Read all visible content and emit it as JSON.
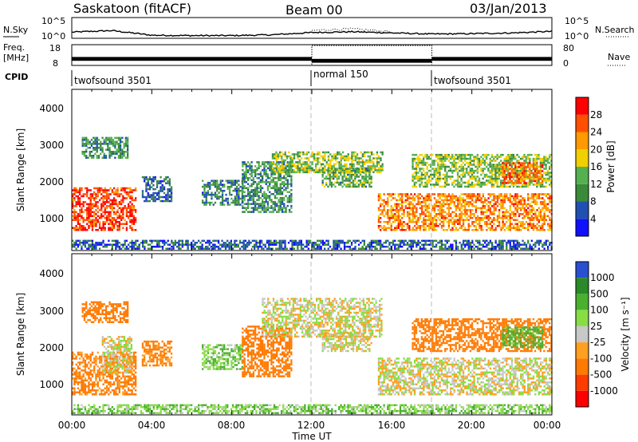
{
  "header": {
    "station": "Saskatoon (fitACF)",
    "beam": "Beam 00",
    "date": "03/Jan/2013"
  },
  "noise_panel": {
    "left_label": "N.Sky",
    "right_label": "N.Search",
    "top_tick": "10^5",
    "bottom_tick": "10^0"
  },
  "freq_panel": {
    "left_label_top": "Freq.",
    "left_label_unit": "[MHz]",
    "left_ticks": [
      "18",
      "8"
    ],
    "right_ticks": [
      "80",
      "0"
    ],
    "right_label": "Nave"
  },
  "cpid_panel": {
    "label": "CPID",
    "segments": [
      {
        "name": "twofsound 3501",
        "start_h": 0,
        "end_h": 12
      },
      {
        "name": "normal 150",
        "start_h": 12,
        "end_h": 18
      },
      {
        "name": "twofsound 3501",
        "start_h": 18,
        "end_h": 24
      }
    ]
  },
  "x_axis": {
    "label": "Time UT",
    "ticks": [
      "00:00",
      "04:00",
      "08:00",
      "12:00",
      "16:00",
      "20:00",
      "00:00"
    ]
  },
  "y_axis": {
    "label": "Slant Range [km]",
    "ticks": [
      "1000",
      "2000",
      "3000",
      "4000"
    ]
  },
  "power_scale": {
    "label": "Power [dB]",
    "ticks": [
      "4",
      "8",
      "12",
      "16",
      "20",
      "24",
      "28"
    ],
    "colors": [
      "#1010ff",
      "#2050b0",
      "#3a8a3a",
      "#55b050",
      "#f0d000",
      "#ff9a00",
      "#ff5000",
      "#ff0000"
    ]
  },
  "velocity_scale": {
    "label": "Velocity [m s⁻¹]",
    "ticks": [
      "1000",
      "500",
      "100",
      "25",
      "-25",
      "-100",
      "-500",
      "-1000"
    ],
    "colors": [
      "#2850d0",
      "#2a8a2a",
      "#4ab030",
      "#88dd44",
      "#c8c8c8",
      "#ffa020",
      "#ff7a00",
      "#ff3c00",
      "#ff0000"
    ]
  },
  "chart_data": [
    {
      "type": "line",
      "title": "N.Sky / N.Search",
      "x_range_h": [
        0,
        24
      ],
      "log_scale": true,
      "ylim": [
        "10^0",
        "10^5"
      ],
      "series": [
        {
          "name": "N.Sky",
          "style": "solid",
          "x_h": [
            0,
            1,
            2,
            3,
            4,
            6,
            8,
            10,
            12,
            14,
            16,
            18,
            20,
            22,
            24
          ],
          "y_log10": [
            1.4,
            1.6,
            1.8,
            1.2,
            0.6,
            0.5,
            0.5,
            0.7,
            1.3,
            1.5,
            1.2,
            0.9,
            1.0,
            1.2,
            1.6
          ]
        },
        {
          "name": "N.Search",
          "style": "dotted",
          "x_h": [
            12,
            13,
            14,
            15,
            16
          ],
          "y_log10": [
            1.8,
            2.1,
            2.2,
            1.9,
            1.5
          ]
        }
      ]
    },
    {
      "type": "line",
      "title": "Freq. / Nave",
      "x_range_h": [
        0,
        24
      ],
      "series": [
        {
          "name": "Freq.",
          "units": "MHz",
          "x_h": [
            0,
            12,
            12,
            18,
            18,
            24
          ],
          "y": [
            11,
            11,
            10,
            10,
            11,
            11
          ]
        },
        {
          "name": "Nave",
          "style": "dotted",
          "x_h": [
            12,
            12,
            18,
            18
          ],
          "y": [
            0,
            80,
            80,
            0
          ]
        }
      ]
    },
    {
      "type": "heatmap",
      "title": "Power [dB]",
      "xlabel": "Time UT",
      "ylabel": "Slant Range [km]",
      "x_range_h": [
        0,
        24
      ],
      "ylim": [
        180,
        4600
      ],
      "colorbar": {
        "label": "Power [dB]",
        "range": [
          0,
          30
        ]
      },
      "regions": [
        {
          "t0": 0.0,
          "t1": 3.2,
          "r0": 700,
          "r1": 1900,
          "value": 26
        },
        {
          "t0": 0.5,
          "t1": 2.8,
          "r0": 2700,
          "r1": 3300,
          "value": 10
        },
        {
          "t0": 3.5,
          "t1": 5.0,
          "r0": 1500,
          "r1": 2200,
          "value": 6
        },
        {
          "t0": 6.5,
          "t1": 8.5,
          "r0": 1400,
          "r1": 2100,
          "value": 8
        },
        {
          "t0": 8.5,
          "t1": 11.0,
          "r0": 1200,
          "r1": 2600,
          "value": 10
        },
        {
          "t0": 10.0,
          "t1": 15.5,
          "r0": 2300,
          "r1": 2900,
          "value": 14
        },
        {
          "t0": 12.5,
          "t1": 15.0,
          "r0": 1900,
          "r1": 2400,
          "value": 12
        },
        {
          "t0": 15.3,
          "t1": 24.0,
          "r0": 700,
          "r1": 1700,
          "value": 22
        },
        {
          "t0": 17.0,
          "t1": 24.0,
          "r0": 1900,
          "r1": 2800,
          "value": 14
        },
        {
          "t0": 21.5,
          "t1": 23.5,
          "r0": 2000,
          "r1": 2600,
          "value": 24
        },
        {
          "t0": 0.0,
          "t1": 24.0,
          "r0": 180,
          "r1": 450,
          "value": 6
        }
      ]
    },
    {
      "type": "heatmap",
      "title": "Velocity [m s⁻¹]",
      "xlabel": "Time UT",
      "ylabel": "Slant Range [km]",
      "x_range_h": [
        0,
        24
      ],
      "ylim": [
        180,
        4600
      ],
      "colorbar": {
        "label": "Velocity [m s⁻¹]",
        "range": [
          -1000,
          1000
        ]
      },
      "regions": [
        {
          "t0": 0.0,
          "t1": 3.2,
          "r0": 700,
          "r1": 1900,
          "value": -150
        },
        {
          "t0": 1.5,
          "t1": 3.0,
          "r0": 1300,
          "r1": 2300,
          "value": 0
        },
        {
          "t0": 0.5,
          "t1": 2.8,
          "r0": 2700,
          "r1": 3300,
          "value": -200
        },
        {
          "t0": 3.5,
          "t1": 5.0,
          "r0": 1500,
          "r1": 2200,
          "value": -150
        },
        {
          "t0": 6.5,
          "t1": 8.5,
          "r0": 1400,
          "r1": 2100,
          "value": 80
        },
        {
          "t0": 8.5,
          "t1": 11.0,
          "r0": 1200,
          "r1": 2600,
          "value": -200
        },
        {
          "t0": 9.5,
          "t1": 15.5,
          "r0": 2300,
          "r1": 3400,
          "value": 0
        },
        {
          "t0": 12.5,
          "t1": 15.0,
          "r0": 1900,
          "r1": 2400,
          "value": 0
        },
        {
          "t0": 15.3,
          "t1": 24.0,
          "r0": 700,
          "r1": 1700,
          "value": 0
        },
        {
          "t0": 17.0,
          "t1": 24.0,
          "r0": 1900,
          "r1": 2800,
          "value": -200
        },
        {
          "t0": 21.5,
          "t1": 23.5,
          "r0": 2000,
          "r1": 2600,
          "value": 150
        },
        {
          "t0": 0.0,
          "t1": 24.0,
          "r0": 180,
          "r1": 450,
          "value": 80
        }
      ]
    }
  ]
}
